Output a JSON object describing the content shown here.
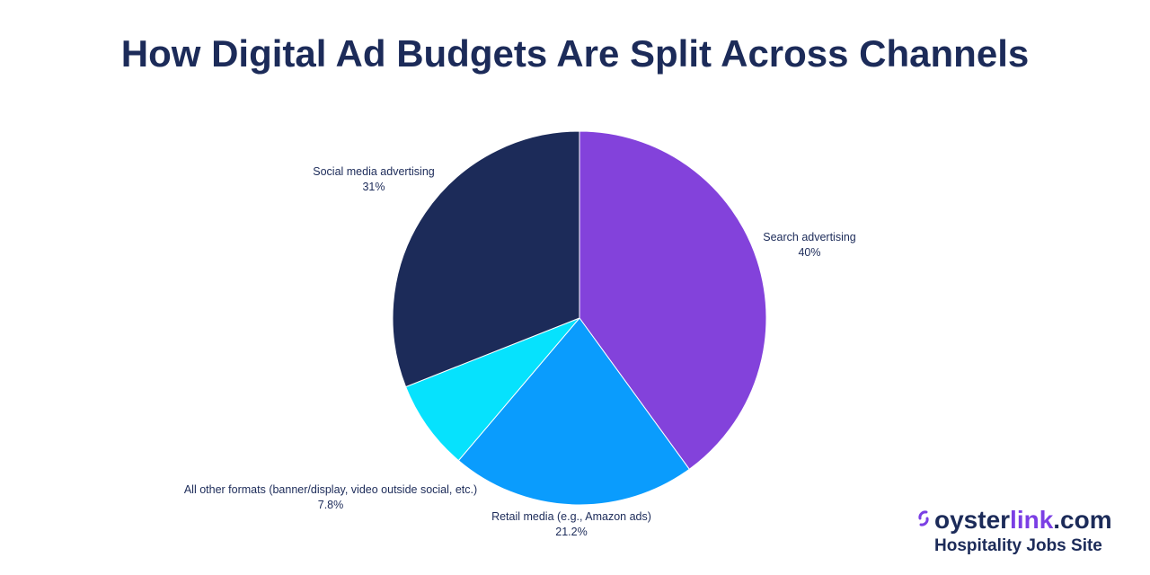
{
  "chart_data": {
    "type": "pie",
    "title": "How Digital Ad Budgets Are Split Across Channels",
    "slices": [
      {
        "label": "Search advertising",
        "value_label": "40%",
        "value": 40,
        "color": "#8342db"
      },
      {
        "label": "Retail media (e.g., Amazon ads)",
        "value_label": "21.2%",
        "value": 21.2,
        "color": "#0a9cfd"
      },
      {
        "label": "All other formats (banner/display, video outside social, etc.)",
        "value_label": "7.8%",
        "value": 7.8,
        "color": "#06e2fd"
      },
      {
        "label": "Social media advertising",
        "value_label": "31%",
        "value": 31,
        "color": "#1c2b59"
      }
    ],
    "start_angle_deg": 0,
    "direction": "clockwise",
    "legend": "none"
  },
  "branding": {
    "logo_icon": "oyster-mark-icon",
    "logo_dark": "oyster",
    "logo_accent": "link",
    "logo_suffix": ".com",
    "tagline": "Hospitality Jobs Site",
    "accent_color": "#7b3fe4",
    "dark_color": "#1c2b59"
  }
}
